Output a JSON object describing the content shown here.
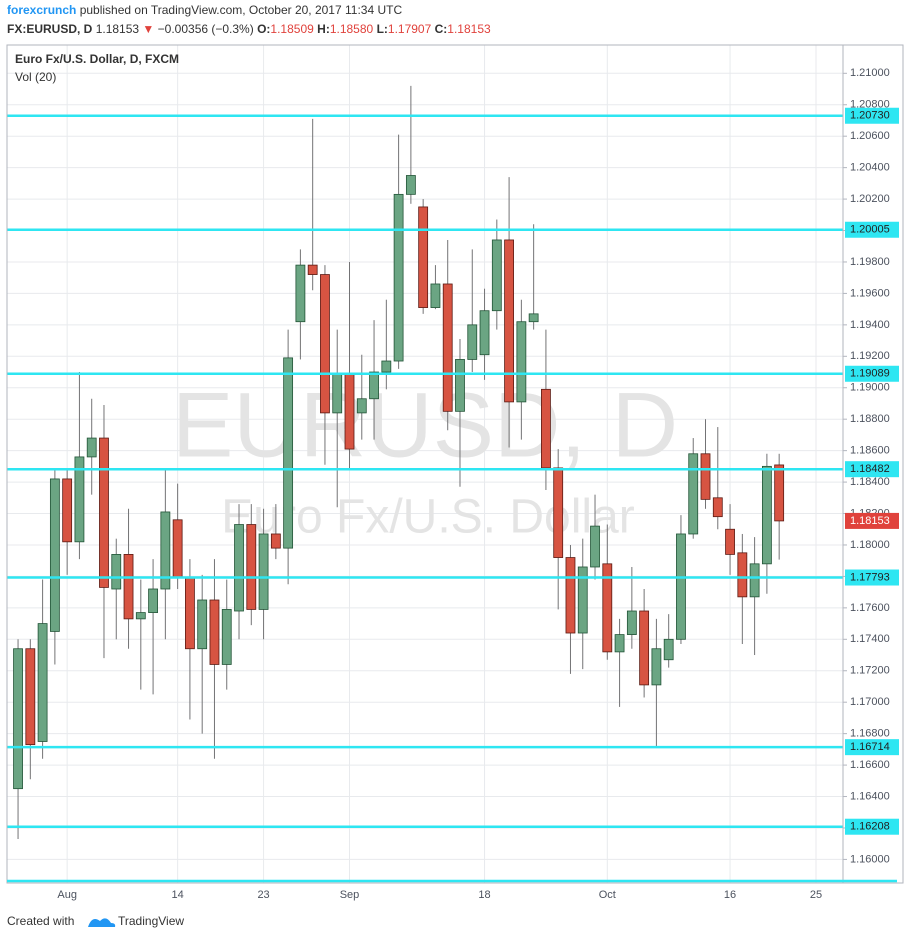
{
  "header": {
    "author": "forexcrunch",
    "published": "published on TradingView.com, October 20, 2017 11:34 UTC",
    "symbol": "FX:EURUSD, D",
    "last": "1.18153",
    "arrow": "▼",
    "change": "−0.00356 (−0.3%)",
    "o_label": "O:",
    "o": "1.18509",
    "h_label": "H:",
    "h": "1.18580",
    "l_label": "L:",
    "l": "1.17907",
    "c_label": "C:",
    "c": "1.18153"
  },
  "chart_data": {
    "type": "candlestick",
    "legend": "Euro Fx/U.S. Dollar, D, FXCM",
    "indicator": "Vol (20)",
    "watermark": "EURUSD, D",
    "watermark_sub": "Euro Fx/U.S. Dollar",
    "up_color": "#6ba583",
    "down_color": "#d75442",
    "level_color": "#2ee6f2",
    "last_color": "#e0423c",
    "xlim": [
      -0.9,
      67.2
    ],
    "ylim": [
      1.1585,
      1.2118
    ],
    "grid": true,
    "xticks": [
      {
        "value": 4,
        "label": "Aug"
      },
      {
        "value": 13,
        "label": "14"
      },
      {
        "value": 20,
        "label": "23"
      },
      {
        "value": 27,
        "label": "Sep"
      },
      {
        "value": 38,
        "label": "18"
      },
      {
        "value": 48,
        "label": "Oct"
      },
      {
        "value": 58,
        "label": "16"
      },
      {
        "value": 65,
        "label": "25"
      }
    ],
    "yticks": [
      {
        "value": 1.16,
        "label": "1.16000"
      },
      {
        "value": 1.162,
        "label": "1.16200"
      },
      {
        "value": 1.164,
        "label": "1.16400"
      },
      {
        "value": 1.166,
        "label": "1.16600"
      },
      {
        "value": 1.168,
        "label": "1.16800"
      },
      {
        "value": 1.17,
        "label": "1.17000"
      },
      {
        "value": 1.172,
        "label": "1.17200"
      },
      {
        "value": 1.174,
        "label": "1.17400"
      },
      {
        "value": 1.176,
        "label": "1.17600"
      },
      {
        "value": 1.178,
        "label": "1.17800"
      },
      {
        "value": 1.18,
        "label": "1.18000"
      },
      {
        "value": 1.182,
        "label": "1.18200"
      },
      {
        "value": 1.184,
        "label": "1.18400"
      },
      {
        "value": 1.186,
        "label": "1.18600"
      },
      {
        "value": 1.188,
        "label": "1.18800"
      },
      {
        "value": 1.19,
        "label": "1.19000"
      },
      {
        "value": 1.192,
        "label": "1.19200"
      },
      {
        "value": 1.194,
        "label": "1.19400"
      },
      {
        "value": 1.196,
        "label": "1.19600"
      },
      {
        "value": 1.198,
        "label": "1.19800"
      },
      {
        "value": 1.2,
        "label": "1.20000"
      },
      {
        "value": 1.202,
        "label": "1.20200"
      },
      {
        "value": 1.204,
        "label": "1.20400"
      },
      {
        "value": 1.206,
        "label": "1.20600"
      },
      {
        "value": 1.208,
        "label": "1.20800"
      },
      {
        "value": 1.21,
        "label": "1.21000"
      }
    ],
    "levels": [
      {
        "value": 1.2073,
        "label": "1.20730"
      },
      {
        "value": 1.20005,
        "label": "1.20005"
      },
      {
        "value": 1.19089,
        "label": "1.19089"
      },
      {
        "value": 1.18482,
        "label": "1.18482"
      },
      {
        "value": 1.17793,
        "label": "1.17793"
      },
      {
        "value": 1.16714,
        "label": "1.16714"
      },
      {
        "value": 1.16208,
        "label": "1.16208"
      }
    ],
    "last_price": {
      "value": 1.18153,
      "label": "1.18153"
    },
    "candles": {
      "open": [
        1.1645,
        1.1734,
        1.1675,
        1.1745,
        1.1842,
        1.1802,
        1.1856,
        1.1868,
        1.1772,
        1.1794,
        1.1753,
        1.1757,
        1.1772,
        1.1816,
        1.1779,
        1.1734,
        1.1765,
        1.1724,
        1.1758,
        1.1813,
        1.1759,
        1.1807,
        1.1798,
        1.1942,
        1.1978,
        1.1972,
        1.1884,
        1.1909,
        1.1884,
        1.1893,
        1.191,
        1.1917,
        1.2023,
        1.2015,
        1.1951,
        1.1966,
        1.1885,
        1.1918,
        1.1921,
        1.1949,
        1.1994,
        1.1891,
        1.1942,
        1.1899,
        1.1849,
        1.1792,
        1.1744,
        1.1786,
        1.1788,
        1.1732,
        1.1743,
        1.1758,
        1.1711,
        1.1727,
        1.174,
        1.1807,
        1.1858,
        1.183,
        1.181,
        1.1795,
        1.1767,
        1.1788,
        1.18509
      ],
      "high": [
        1.174,
        1.174,
        1.1778,
        1.1848,
        1.1848,
        1.191,
        1.1893,
        1.1889,
        1.1804,
        1.1823,
        1.1778,
        1.1791,
        1.1848,
        1.1839,
        1.1791,
        1.1781,
        1.1791,
        1.1778,
        1.1826,
        1.1826,
        1.1823,
        1.1826,
        1.1937,
        1.1988,
        1.2071,
        1.1978,
        1.1937,
        1.198,
        1.1921,
        1.1943,
        1.1956,
        1.2061,
        1.2092,
        1.202,
        1.1978,
        1.1994,
        1.1931,
        1.1988,
        1.1963,
        1.2007,
        1.2034,
        1.1956,
        1.2004,
        1.1937,
        1.1861,
        1.18,
        1.1804,
        1.1832,
        1.1813,
        1.1753,
        1.1786,
        1.1772,
        1.1753,
        1.1756,
        1.1819,
        1.1868,
        1.188,
        1.1875,
        1.1826,
        1.1807,
        1.1805,
        1.1858,
        1.1858
      ],
      "low": [
        1.1613,
        1.1651,
        1.1664,
        1.1724,
        1.1781,
        1.1791,
        1.1832,
        1.1728,
        1.174,
        1.1734,
        1.1708,
        1.1705,
        1.174,
        1.1772,
        1.1689,
        1.168,
        1.1664,
        1.1708,
        1.174,
        1.1749,
        1.174,
        1.1791,
        1.1775,
        1.1918,
        1.1962,
        1.1851,
        1.1824,
        1.1848,
        1.1867,
        1.1867,
        1.1899,
        1.1912,
        1.2017,
        1.1947,
        1.195,
        1.1873,
        1.1837,
        1.191,
        1.1905,
        1.1937,
        1.1862,
        1.1867,
        1.1937,
        1.1835,
        1.1759,
        1.1718,
        1.1721,
        1.1778,
        1.1727,
        1.1697,
        1.1734,
        1.1703,
        1.1671,
        1.1722,
        1.1737,
        1.1804,
        1.1823,
        1.181,
        1.1781,
        1.1737,
        1.173,
        1.1769,
        1.17907
      ],
      "close": [
        1.1734,
        1.1673,
        1.175,
        1.1842,
        1.1802,
        1.1856,
        1.1868,
        1.1773,
        1.1794,
        1.1753,
        1.1757,
        1.1772,
        1.1821,
        1.1779,
        1.1734,
        1.1765,
        1.1724,
        1.1759,
        1.1813,
        1.1759,
        1.1807,
        1.1798,
        1.1919,
        1.1978,
        1.1972,
        1.1884,
        1.1909,
        1.1861,
        1.1893,
        1.191,
        1.1917,
        1.2023,
        1.2035,
        1.1951,
        1.1966,
        1.1885,
        1.1918,
        1.194,
        1.1949,
        1.1994,
        1.1891,
        1.1942,
        1.1947,
        1.1849,
        1.1792,
        1.1744,
        1.1786,
        1.1812,
        1.1732,
        1.1743,
        1.1758,
        1.1711,
        1.1734,
        1.174,
        1.1807,
        1.1858,
        1.1829,
        1.1818,
        1.1794,
        1.1767,
        1.1788,
        1.185,
        1.18153
      ]
    }
  },
  "footer": {
    "created": "Created with",
    "brand": "TradingView"
  }
}
